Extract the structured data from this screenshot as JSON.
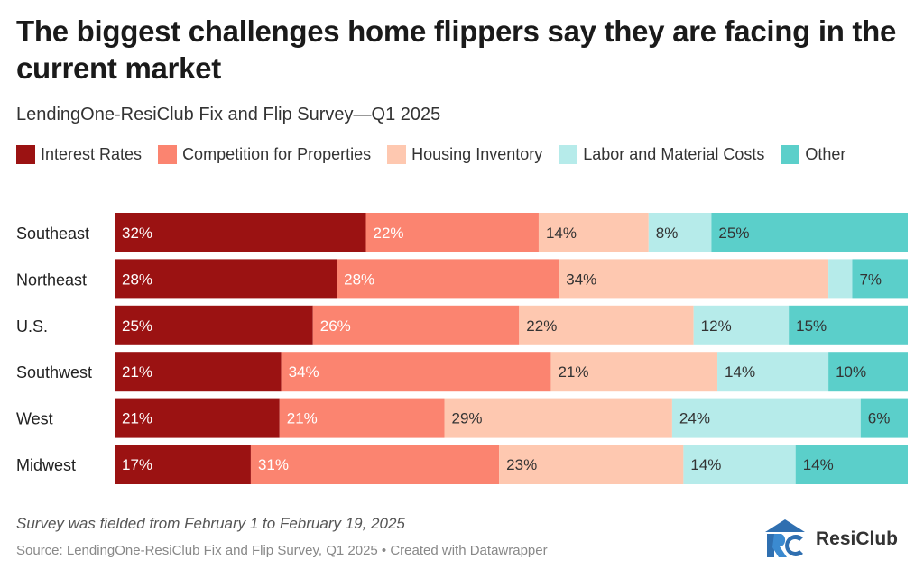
{
  "header": {
    "title": "The biggest challenges home flippers say they are facing in the current market",
    "subtitle": "LendingOne-ResiClub Fix and Flip Survey—Q1 2025"
  },
  "footer": {
    "note": "Survey was fielded from February 1 to February 19, 2025",
    "source": "Source: LendingOne-ResiClub Fix and Flip Survey, Q1 2025 • Created with Datawrapper",
    "brand": "ResiClub"
  },
  "chart_data": {
    "type": "bar",
    "orientation": "horizontal",
    "stacked": true,
    "title": "The biggest challenges home flippers say they are facing in the current market",
    "subtitle": "LendingOne-ResiClub Fix and Flip Survey—Q1 2025",
    "xlabel": "",
    "ylabel": "",
    "categories": [
      "Southeast",
      "Northeast",
      "U.S.",
      "Southwest",
      "West",
      "Midwest"
    ],
    "series": [
      {
        "name": "Interest Rates",
        "color": "#9b1212",
        "label_color": "#ffffff",
        "values": [
          32,
          28,
          25,
          21,
          21,
          17
        ],
        "labels": [
          "32%",
          "28%",
          "25%",
          "21%",
          "21%",
          "17%"
        ]
      },
      {
        "name": "Competition for Properties",
        "color": "#fb8470",
        "label_color": "#ffffff",
        "values": [
          22,
          28,
          26,
          34,
          21,
          31
        ],
        "labels": [
          "22%",
          "28%",
          "26%",
          "34%",
          "21%",
          "31%"
        ]
      },
      {
        "name": "Housing Inventory",
        "color": "#fec8b0",
        "label_color": "#333333",
        "values": [
          14,
          34,
          22,
          21,
          29,
          23
        ],
        "labels": [
          "14%",
          "34%",
          "22%",
          "21%",
          "29%",
          "23%"
        ]
      },
      {
        "name": "Labor and Material Costs",
        "color": "#b6ebea",
        "label_color": "#333333",
        "values": [
          8,
          3,
          12,
          14,
          24,
          14
        ],
        "labels": [
          "8%",
          "",
          "12%",
          "14%",
          "24%",
          "14%"
        ]
      },
      {
        "name": "Other",
        "color": "#5bcfca",
        "label_color": "#333333",
        "values": [
          25,
          7,
          15,
          10,
          6,
          14
        ],
        "labels": [
          "25%",
          "7%",
          "15%",
          "10%",
          "6%",
          "14%"
        ]
      }
    ]
  }
}
